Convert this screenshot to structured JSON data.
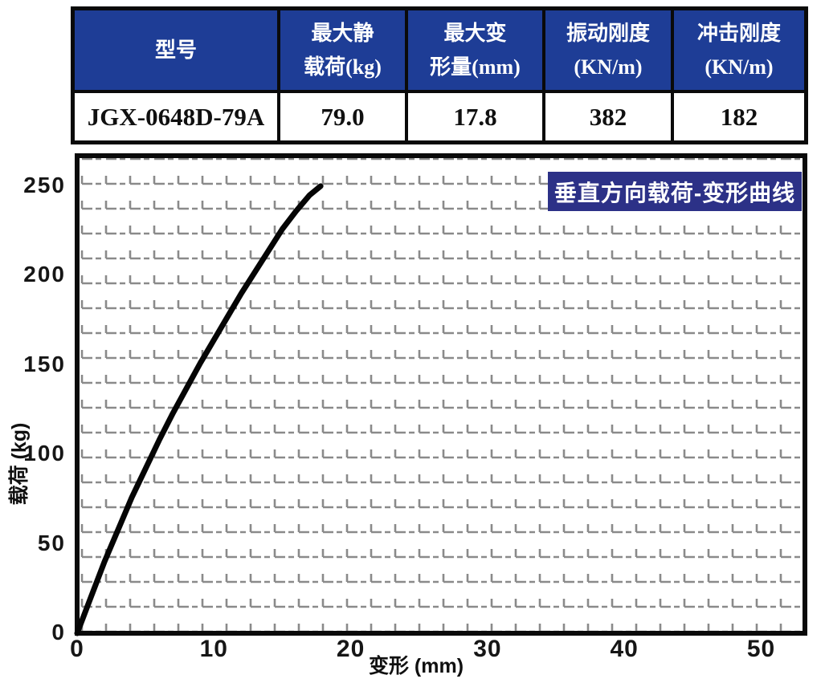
{
  "table": {
    "header_bg": "#1e3d96",
    "header_text_color": "#ffffff",
    "columns": [
      {
        "header_lines": [
          "型号"
        ],
        "value": "JGX-0648D-79A"
      },
      {
        "header_lines": [
          "最大静",
          "载荷(kg)"
        ],
        "value": "79.0"
      },
      {
        "header_lines": [
          "最大变",
          "形量(mm)"
        ],
        "value": "17.8"
      },
      {
        "header_lines": [
          "振动刚度",
          "(KN/m)"
        ],
        "value": "382"
      },
      {
        "header_lines": [
          "冲击刚度",
          "(KN/m)"
        ],
        "value": "182"
      }
    ]
  },
  "chart_data": {
    "type": "line",
    "title": "垂直方向载荷-变形曲线",
    "xlabel": "变形 (mm)",
    "ylabel": "载荷 (kg)",
    "xlim": [
      0,
      53.2
    ],
    "ylim": [
      0,
      267
    ],
    "xticks": [
      0,
      10,
      20,
      30,
      40,
      50
    ],
    "yticks": [
      0,
      50,
      100,
      150,
      200,
      250
    ],
    "grid": true,
    "grid_color": "#8a8a8a",
    "curve_color": "#050505",
    "title_bg": "#2c3187",
    "series": [
      {
        "name": "垂直方向载荷-变形曲线",
        "x": [
          0,
          0.5,
          1,
          1.5,
          2,
          2.5,
          3,
          3.5,
          4,
          4.5,
          5,
          6,
          7,
          8,
          9,
          10,
          11,
          12,
          13,
          14,
          15,
          16,
          17,
          17.8
        ],
        "y": [
          0,
          10,
          20,
          30,
          40,
          49,
          58,
          67,
          76,
          84,
          92,
          108,
          123,
          137,
          151,
          164,
          177,
          190,
          202,
          214,
          226,
          236,
          245,
          250
        ]
      }
    ]
  }
}
